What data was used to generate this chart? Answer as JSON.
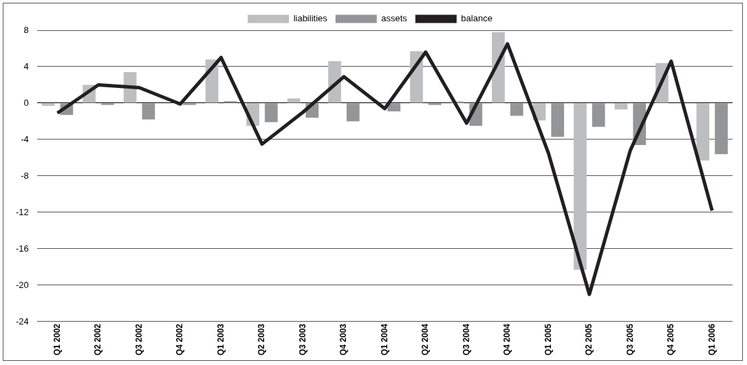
{
  "chart_data": {
    "type": "bar",
    "categories": [
      "Q1 2002",
      "Q2 2002",
      "Q3 2002",
      "Q4 2002",
      "Q1 2003",
      "Q2 2003",
      "Q3 2003",
      "Q4 2003",
      "Q1 2004",
      "Q2 2004",
      "Q3 2004",
      "Q4 2004",
      "Q1 2005",
      "Q2 2005",
      "Q3 2005",
      "Q4 2005",
      "Q1 2006"
    ],
    "series": [
      {
        "name": "liabilities",
        "color": "#bdbec0",
        "values": [
          -0.3,
          2.0,
          3.4,
          null,
          4.8,
          -2.5,
          0.5,
          4.6,
          null,
          5.7,
          0.2,
          7.8,
          -1.9,
          -18.3,
          -0.7,
          4.4,
          -6.3
        ]
      },
      {
        "name": "assets",
        "color": "#939598",
        "values": [
          -1.3,
          -0.2,
          -1.8,
          -0.2,
          0.2,
          -2.1,
          -1.6,
          -2.0,
          -0.9,
          -0.2,
          -2.5,
          -1.4,
          -3.7,
          -2.6,
          -4.6,
          0.0,
          -5.6
        ]
      },
      {
        "name": "balance",
        "type": "line",
        "color": "#231f20",
        "values": [
          -1.1,
          2.0,
          1.7,
          -0.1,
          5.0,
          -4.5,
          -1.0,
          2.9,
          -0.6,
          5.6,
          -2.2,
          6.5,
          -5.5,
          -21.0,
          -5.2,
          4.6,
          -11.8
        ]
      }
    ],
    "ylim": [
      -24,
      8
    ],
    "yticks": [
      -24,
      -20,
      -16,
      -12,
      -8,
      -4,
      0,
      4,
      8
    ],
    "grid": "y",
    "legend": "top",
    "marker": "none"
  }
}
